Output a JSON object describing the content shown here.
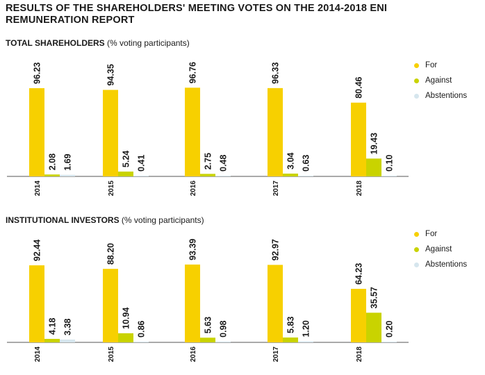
{
  "title": "RESULTS OF THE SHAREHOLDERS' MEETING VOTES ON THE 2014-2018 ENI REMUNERATION REPORT",
  "colors": {
    "for": "#f7d000",
    "against": "#c9d300",
    "abstentions": "#d6e6ee",
    "axis": "#555555"
  },
  "chart_data": [
    {
      "type": "bar",
      "title": "TOTAL SHAREHOLDERS",
      "subtitle": "(% voting participants)",
      "categories": [
        "2014",
        "2015",
        "2016",
        "2017",
        "2018"
      ],
      "series": [
        {
          "name": "For",
          "values": [
            96.23,
            94.35,
            96.76,
            96.33,
            80.46
          ]
        },
        {
          "name": "Against",
          "values": [
            2.08,
            5.24,
            2.75,
            3.04,
            19.43
          ]
        },
        {
          "name": "Abstentions",
          "values": [
            1.69,
            0.41,
            0.48,
            0.63,
            0.1
          ]
        }
      ],
      "value_labels": [
        [
          "96.23",
          "94.35",
          "96.76",
          "96.33",
          "80.46"
        ],
        [
          "2.08",
          "5.24",
          "2.75",
          "3.04",
          "19.43"
        ],
        [
          "1.69",
          "0.41",
          "0.48",
          "0.63",
          "0.10"
        ]
      ],
      "ylim": [
        0,
        100
      ],
      "grid": false,
      "legend_position": "right"
    },
    {
      "type": "bar",
      "title": "INSTITUTIONAL INVESTORS",
      "subtitle": "(% voting participants)",
      "categories": [
        "2014",
        "2015",
        "2016",
        "2017",
        "2018"
      ],
      "series": [
        {
          "name": "For",
          "values": [
            92.44,
            88.2,
            93.39,
            92.97,
            64.23
          ]
        },
        {
          "name": "Against",
          "values": [
            4.18,
            10.94,
            5.63,
            5.83,
            35.57
          ]
        },
        {
          "name": "Abstentions",
          "values": [
            3.38,
            0.86,
            0.98,
            1.2,
            0.2
          ]
        }
      ],
      "value_labels": [
        [
          "92.44",
          "88.20",
          "93.39",
          "92.97",
          "64.23"
        ],
        [
          "4.18",
          "10.94",
          "5.63",
          "5.83",
          "35.57"
        ],
        [
          "3.38",
          "0.86",
          "0.98",
          "1.20",
          "0.20"
        ]
      ],
      "ylim": [
        0,
        100
      ],
      "grid": false,
      "legend_position": "right"
    }
  ]
}
